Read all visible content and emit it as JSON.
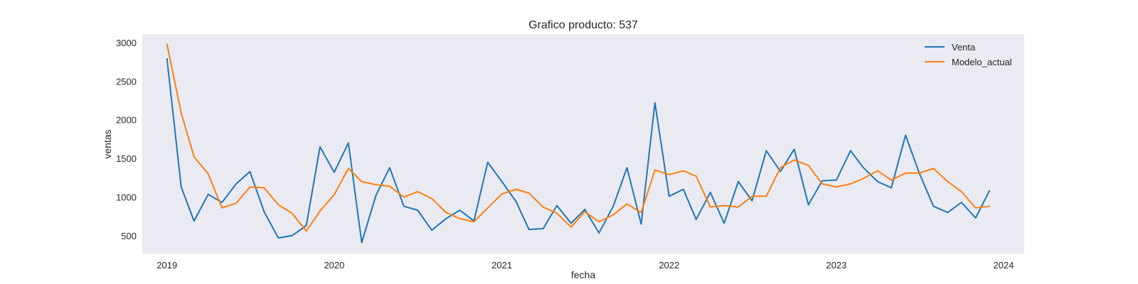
{
  "chart_data": {
    "type": "line",
    "title": "Grafico producto: 537",
    "xlabel": "fecha",
    "ylabel": "ventas",
    "xlim": [
      "2018-11-08",
      "2024-02-15"
    ],
    "ylim": [
      260,
      3110
    ],
    "x_ticks": [
      {
        "value": "2019-01-01",
        "label": "2019"
      },
      {
        "value": "2020-01-01",
        "label": "2020"
      },
      {
        "value": "2021-01-01",
        "label": "2021"
      },
      {
        "value": "2022-01-01",
        "label": "2022"
      },
      {
        "value": "2023-01-01",
        "label": "2023"
      },
      {
        "value": "2024-01-01",
        "label": "2024"
      }
    ],
    "y_ticks": [
      500,
      1000,
      1500,
      2000,
      2500,
      3000
    ],
    "grid": false,
    "legend_position": "top-right",
    "background": "#eaeaf2",
    "x": [
      "2019-01-01",
      "2019-02-01",
      "2019-03-01",
      "2019-04-01",
      "2019-05-01",
      "2019-06-01",
      "2019-07-01",
      "2019-08-01",
      "2019-09-01",
      "2019-10-01",
      "2019-11-01",
      "2019-12-01",
      "2020-01-01",
      "2020-02-01",
      "2020-03-01",
      "2020-04-01",
      "2020-05-01",
      "2020-06-01",
      "2020-07-01",
      "2020-08-01",
      "2020-09-01",
      "2020-10-01",
      "2020-11-01",
      "2020-12-01",
      "2021-01-01",
      "2021-02-01",
      "2021-03-01",
      "2021-04-01",
      "2021-05-01",
      "2021-06-01",
      "2021-07-01",
      "2021-08-01",
      "2021-09-01",
      "2021-10-01",
      "2021-11-01",
      "2021-12-01",
      "2022-01-01",
      "2022-02-01",
      "2022-03-01",
      "2022-04-01",
      "2022-05-01",
      "2022-06-01",
      "2022-07-01",
      "2022-08-01",
      "2022-09-01",
      "2022-10-01",
      "2022-11-01",
      "2022-12-01",
      "2023-01-01",
      "2023-02-01",
      "2023-03-01",
      "2023-04-01",
      "2023-05-01",
      "2023-06-01",
      "2023-07-01",
      "2023-08-01",
      "2023-09-01",
      "2023-10-01",
      "2023-11-01",
      "2023-12-01"
    ],
    "series": [
      {
        "name": "Venta",
        "color": "#1f77b4",
        "values": [
          2790,
          1130,
          690,
          1035,
          930,
          1170,
          1330,
          810,
          470,
          500,
          630,
          1650,
          1320,
          1700,
          410,
          1020,
          1380,
          880,
          830,
          570,
          720,
          830,
          690,
          1450,
          1200,
          940,
          580,
          590,
          890,
          660,
          840,
          535,
          880,
          1380,
          650,
          2220,
          1010,
          1100,
          710,
          1060,
          660,
          1200,
          950,
          1600,
          1330,
          1620,
          900,
          1210,
          1220,
          1600,
          1380,
          1200,
          1120,
          1800,
          1310,
          880,
          800,
          930,
          730,
          1080
        ]
      },
      {
        "name": "Modelo_actual",
        "color": "#ff7f0e",
        "values": [
          2980,
          2090,
          1520,
          1300,
          860,
          920,
          1130,
          1120,
          900,
          790,
          560,
          820,
          1030,
          1370,
          1200,
          1160,
          1140,
          1000,
          1070,
          980,
          800,
          720,
          680,
          860,
          1040,
          1100,
          1050,
          870,
          790,
          610,
          810,
          680,
          770,
          910,
          800,
          1350,
          1290,
          1340,
          1270,
          870,
          890,
          870,
          1010,
          1010,
          1380,
          1480,
          1410,
          1170,
          1130,
          1170,
          1240,
          1340,
          1220,
          1310,
          1310,
          1370,
          1200,
          1070,
          860,
          880
        ]
      }
    ]
  }
}
